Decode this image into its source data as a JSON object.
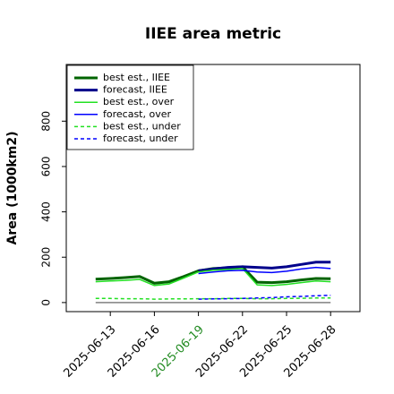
{
  "chart_data": {
    "type": "line",
    "title": "IIEE area metric",
    "ylabel": "Area (1000km2)",
    "x": [
      "2025-06-12",
      "2025-06-13",
      "2025-06-14",
      "2025-06-15",
      "2025-06-16",
      "2025-06-17",
      "2025-06-18",
      "2025-06-19",
      "2025-06-20",
      "2025-06-21",
      "2025-06-22",
      "2025-06-23",
      "2025-06-24",
      "2025-06-25",
      "2025-06-26",
      "2025-06-27",
      "2025-06-28"
    ],
    "xlim": [
      "2025-06-10",
      "2025-06-30"
    ],
    "xticks": [
      "2025-06-13",
      "2025-06-16",
      "2025-06-19",
      "2025-06-22",
      "2025-06-25",
      "2025-06-28"
    ],
    "highlight_tick": "2025-06-19",
    "highlight_color": "#228b22",
    "ylim": [
      -40,
      1050
    ],
    "yticks": [
      0,
      200,
      400,
      600,
      800
    ],
    "hline": 0,
    "legend": "upper left",
    "series": [
      {
        "name": "best est., IIEE",
        "color": "#006400",
        "linewidth": 3,
        "dash": false,
        "values": [
          103,
          106,
          110,
          115,
          85,
          92,
          115,
          140,
          150,
          153,
          158,
          90,
          88,
          92,
          100,
          106,
          105
        ]
      },
      {
        "name": "forecast, IIEE",
        "color": "#00008b",
        "linewidth": 3,
        "dash": false,
        "values": [
          null,
          null,
          null,
          null,
          null,
          null,
          null,
          140,
          148,
          155,
          158,
          155,
          152,
          158,
          168,
          178,
          178
        ]
      },
      {
        "name": "best est., over",
        "color": "#22e022",
        "linewidth": 1.5,
        "dash": false,
        "values": [
          92,
          95,
          98,
          102,
          75,
          82,
          108,
          135,
          143,
          146,
          150,
          78,
          75,
          80,
          88,
          95,
          92
        ]
      },
      {
        "name": "forecast, over",
        "color": "#0000ff",
        "linewidth": 1.5,
        "dash": false,
        "values": [
          null,
          null,
          null,
          null,
          null,
          null,
          null,
          128,
          135,
          140,
          142,
          135,
          132,
          138,
          148,
          155,
          150
        ]
      },
      {
        "name": "best est., under",
        "color": "#22e022",
        "linewidth": 1.5,
        "dash": true,
        "values": [
          18,
          18,
          17,
          17,
          15,
          16,
          16,
          17,
          17,
          18,
          18,
          17,
          17,
          18,
          19,
          20,
          20
        ]
      },
      {
        "name": "forecast, under",
        "color": "#0000ff",
        "linewidth": 1.5,
        "dash": true,
        "values": [
          null,
          null,
          null,
          null,
          null,
          null,
          null,
          15,
          16,
          17,
          18,
          20,
          22,
          25,
          27,
          30,
          32
        ]
      }
    ]
  }
}
